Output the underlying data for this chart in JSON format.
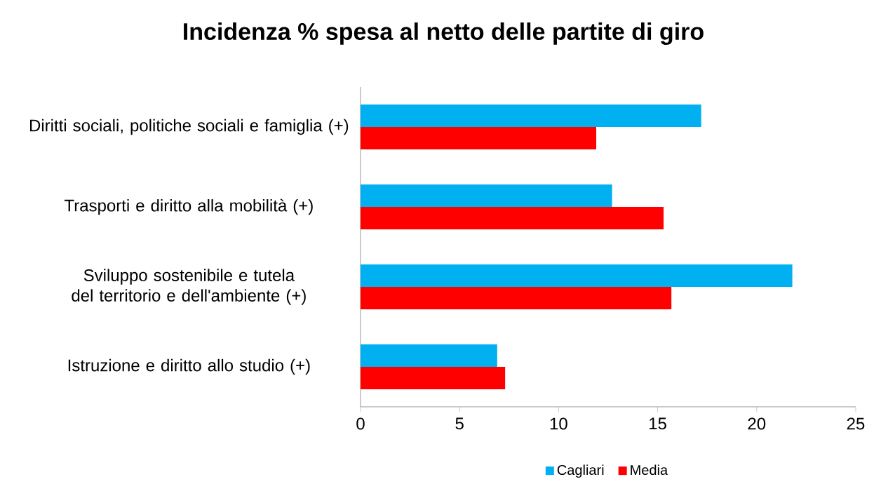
{
  "chart_data": {
    "type": "bar",
    "orientation": "horizontal",
    "title": "Incidenza % spesa al netto delle partite di giro",
    "categories": [
      "Diritti sociali, politiche sociali e famiglia (+)",
      "Trasporti e diritto alla mobilità (+)",
      "Sviluppo sostenibile e tutela del territorio e dell'ambiente (+)",
      "Istruzione e diritto allo studio (+)"
    ],
    "series": [
      {
        "name": "Cagliari",
        "color": "#00b0f0",
        "values": [
          17.2,
          12.7,
          21.8,
          6.9
        ]
      },
      {
        "name": "Media",
        "color": "#ff0000",
        "values": [
          11.9,
          15.3,
          15.7,
          7.3
        ]
      }
    ],
    "xlim": [
      0,
      25
    ],
    "xticks": [
      0,
      5,
      10,
      15,
      20,
      25
    ],
    "grid": false,
    "legend": "bottom"
  }
}
